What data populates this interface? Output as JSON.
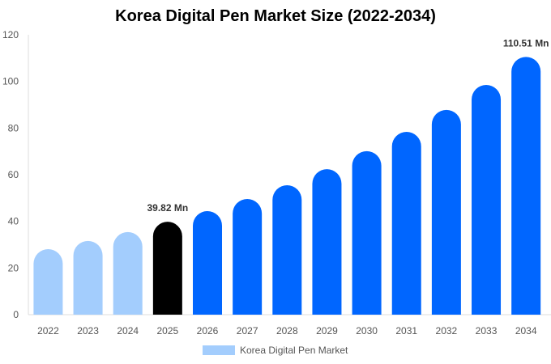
{
  "chart_data": {
    "type": "bar",
    "title": "Korea Digital Pen Market Size (2022-2034)",
    "categories": [
      "2022",
      "2023",
      "2024",
      "2025",
      "2026",
      "2027",
      "2028",
      "2029",
      "2030",
      "2031",
      "2032",
      "2033",
      "2034"
    ],
    "series": [
      {
        "name": "Korea Digital Pen Market",
        "values": [
          28.1,
          31.6,
          35.4,
          39.82,
          44.4,
          49.6,
          55.5,
          62.4,
          70.1,
          78.4,
          87.8,
          98.5,
          110.51
        ]
      }
    ],
    "data_labels": {
      "3": "39.82 Mn",
      "12": "110.51 Mn"
    },
    "ylim": [
      0,
      120
    ],
    "yticks": [
      0,
      20,
      40,
      60,
      80,
      100,
      120
    ],
    "grid": false,
    "legend": "bottom",
    "colors": {
      "historic": "#a3cdfd",
      "current": "#000000",
      "forecast": "#0066ff"
    }
  }
}
